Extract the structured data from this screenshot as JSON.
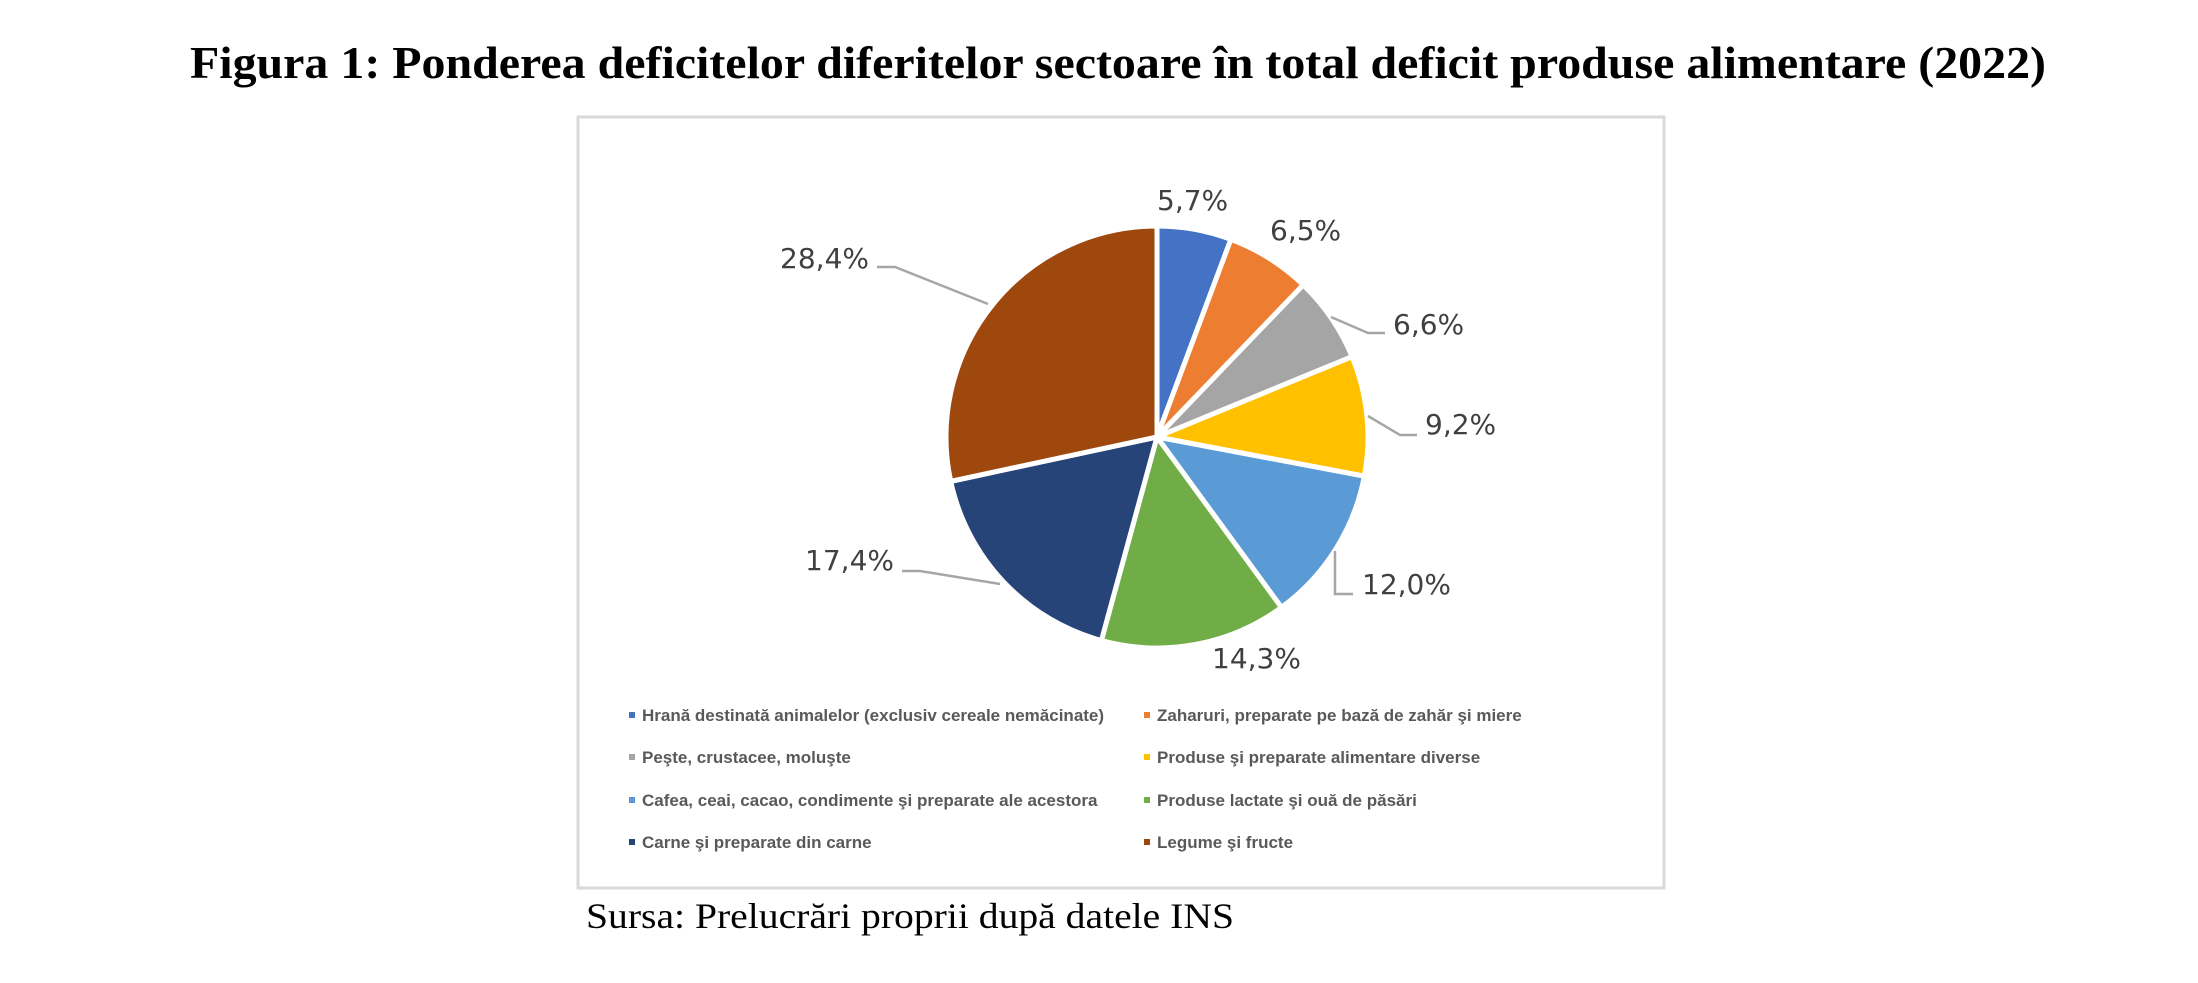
{
  "figure": {
    "title": "Figura 1: Ponderea deficitelor diferitelor sectoare în total deficit produse alimentare (2022)",
    "source": "Sursa: Prelucrări proprii după datele INS"
  },
  "chart_data": {
    "type": "pie",
    "title": "Figura 1: Ponderea deficitelor diferitelor sectoare în total deficit produse alimentare (2022)",
    "unit": "%",
    "start_angle": "top (12 o'clock)",
    "direction": "clockwise",
    "legend_position": "bottom",
    "slices": [
      {
        "label": "Hrană destinată animalelor (exclusiv cereale nemăcinate)",
        "value": 5.7,
        "display": "5,7%",
        "color": "#4472C4"
      },
      {
        "label": "Zaharuri, preparate pe bază de zahăr şi miere",
        "value": 6.5,
        "display": "6,5%",
        "color": "#ED7D31"
      },
      {
        "label": "Peşte, crustacee, moluşte",
        "value": 6.6,
        "display": "6,6%",
        "color": "#A5A5A5"
      },
      {
        "label": "Produse şi preparate alimentare diverse",
        "value": 9.2,
        "display": "9,2%",
        "color": "#FFC000"
      },
      {
        "label": "Cafea, ceai, cacao, condimente şi preparate ale acestora",
        "value": 12.0,
        "display": "12,0%",
        "color": "#5B9BD5"
      },
      {
        "label": "Produse lactate şi ouă de păsări",
        "value": 14.3,
        "display": "14,3%",
        "color": "#70AD47"
      },
      {
        "label": "Carne şi preparate din carne",
        "value": 17.4,
        "display": "17,4%",
        "color": "#264478"
      },
      {
        "label": "Legume şi fructe",
        "value": 28.4,
        "display": "28,4%",
        "color": "#9E480E"
      }
    ]
  }
}
